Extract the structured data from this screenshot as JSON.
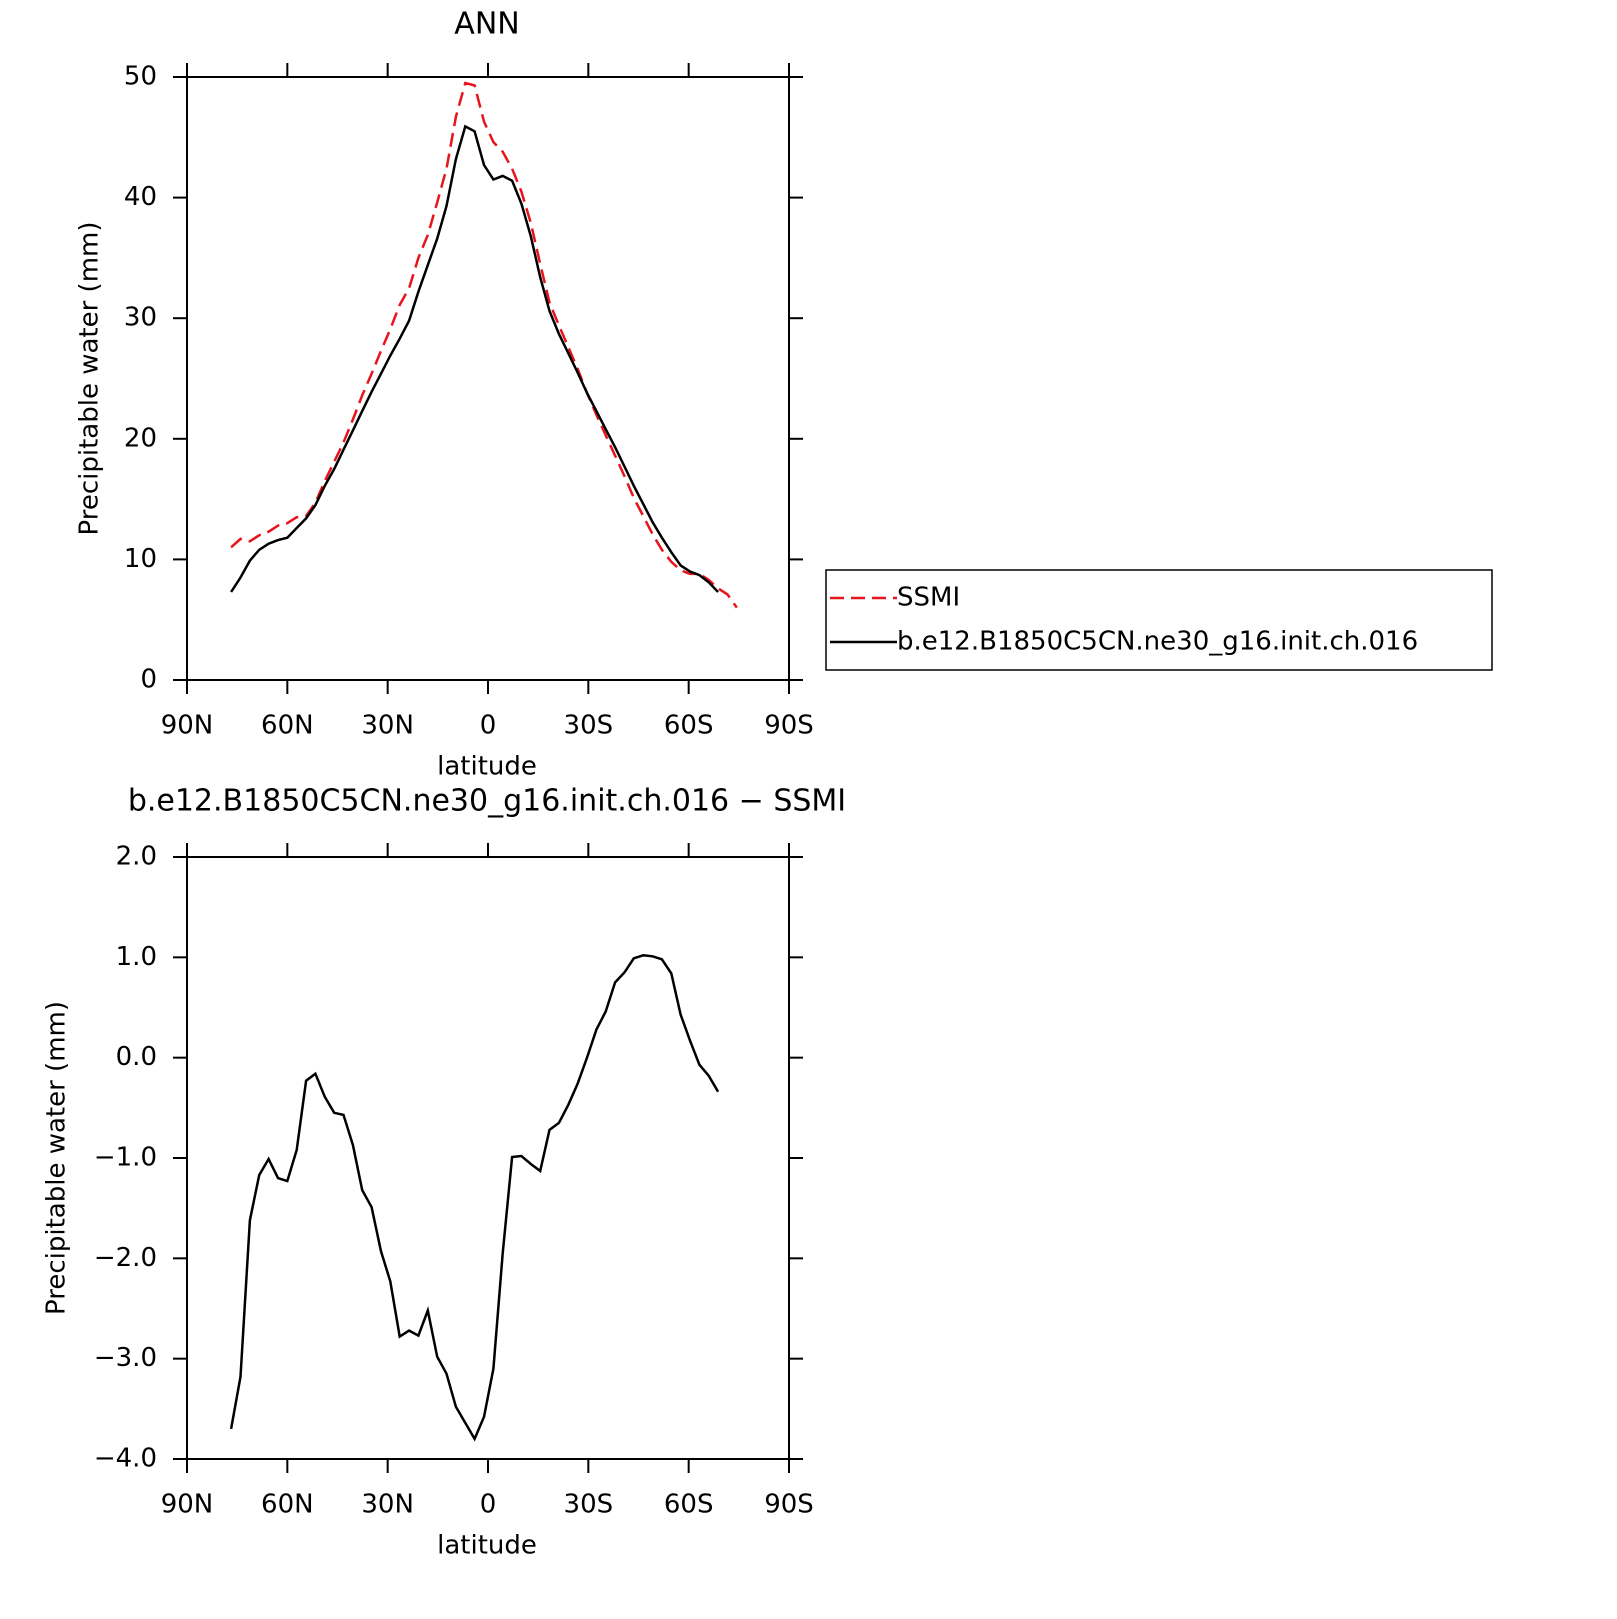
{
  "chart_data": [
    {
      "type": "line",
      "title": "ANN",
      "xlabel": "latitude",
      "ylabel": "Precipitable water (mm)",
      "x": [
        76.8,
        74,
        71.2,
        68.4,
        65.6,
        62.8,
        60,
        57.2,
        54.4,
        51.6,
        48.8,
        46,
        43.2,
        40.4,
        37.6,
        34.8,
        32,
        29.2,
        26.4,
        23.6,
        20.8,
        18,
        15.2,
        12.4,
        9.6,
        6.8,
        4,
        1.2,
        -1.6,
        -4.4,
        -7.2,
        -10,
        -12.8,
        -15.6,
        -18.4,
        -21.2,
        -24,
        -26.8,
        -29.6,
        -32.4,
        -35.2,
        -38,
        -40.8,
        -43.6,
        -46.4,
        -49.2,
        -52,
        -54.8,
        -57.6,
        -60.4,
        -63.2,
        -66,
        -68.8,
        -71.6,
        -74.4
      ],
      "series": [
        {
          "name": "SSMI",
          "color": "#e8141c",
          "linestyle": "dashed",
          "values": [
            11.0,
            11.7,
            11.5,
            12.0,
            12.3,
            12.8,
            13.0,
            13.5,
            13.6,
            14.7,
            16.5,
            18.1,
            19.7,
            21.6,
            23.6,
            25.4,
            27.3,
            29.1,
            31.1,
            32.5,
            35.0,
            36.9,
            39.6,
            42.4,
            46.7,
            49.5,
            49.3,
            46.3,
            44.6,
            43.8,
            42.4,
            40.5,
            37.9,
            34.5,
            31.3,
            29.4,
            27.6,
            25.8,
            23.8,
            22.0,
            20.3,
            18.6,
            16.9,
            15.1,
            13.6,
            12.1,
            10.8,
            9.8,
            9.1,
            8.8,
            8.8,
            8.3,
            7.6,
            7.1,
            6.0
          ]
        },
        {
          "name": "b.e12.B1850C5CN.ne30_g16.init.ch.016",
          "color": "#000000",
          "linestyle": "solid",
          "values": [
            7.3,
            8.5,
            9.9,
            10.8,
            11.3,
            11.6,
            11.8,
            12.6,
            13.4,
            14.5,
            16.1,
            17.5,
            19.1,
            20.7,
            22.3,
            23.9,
            25.4,
            26.9,
            28.3,
            29.8,
            32.2,
            34.4,
            36.6,
            39.3,
            43.2,
            45.9,
            45.5,
            42.7,
            41.5,
            41.8,
            41.4,
            39.5,
            36.8,
            33.4,
            30.6,
            28.7,
            27.1,
            25.5,
            23.8,
            22.3,
            20.8,
            19.3,
            17.7,
            16.1,
            14.6,
            13.1,
            11.8,
            10.6,
            9.5,
            9.0,
            8.7,
            8.1,
            7.3,
            null,
            null
          ]
        }
      ],
      "xlim": [
        90,
        -90
      ],
      "xticks": [
        {
          "value": 90,
          "label": "90N"
        },
        {
          "value": 60,
          "label": "60N"
        },
        {
          "value": 30,
          "label": "30N"
        },
        0,
        {
          "value": -30,
          "label": "30S"
        },
        {
          "value": -60,
          "label": "60S"
        },
        {
          "value": -90,
          "label": "90S"
        }
      ],
      "ylim": [
        0,
        50
      ],
      "yticks": [
        0,
        10,
        20,
        30,
        40,
        50
      ],
      "legend": "right"
    },
    {
      "type": "line",
      "title": "b.e12.B1850C5CN.ne30_g16.init.ch.016 − SSMI",
      "xlabel": "latitude",
      "ylabel": "Precipitable water (mm)",
      "x": [
        76.8,
        74,
        71.2,
        68.4,
        65.6,
        62.8,
        60,
        57.2,
        54.4,
        51.6,
        48.8,
        46,
        43.2,
        40.4,
        37.6,
        34.8,
        32,
        29.2,
        26.4,
        23.6,
        20.8,
        18,
        15.2,
        12.4,
        9.6,
        6.8,
        4,
        1.2,
        -1.6,
        -4.4,
        -7.2,
        -10,
        -12.8,
        -15.6,
        -18.4,
        -21.2,
        -24,
        -26.8,
        -29.6,
        -32.4,
        -35.2,
        -38,
        -40.8,
        -43.6,
        -46.4,
        -49.2,
        -52,
        -54.8,
        -57.6,
        -60.4,
        -63.2,
        -66,
        -68.8
      ],
      "series": [
        {
          "color": "#000000",
          "linestyle": "solid",
          "values": [
            -3.7,
            -3.18,
            -1.62,
            -1.17,
            -1.01,
            -1.2,
            -1.23,
            -0.92,
            -0.23,
            -0.16,
            -0.39,
            -0.55,
            -0.57,
            -0.87,
            -1.32,
            -1.49,
            -1.93,
            -2.23,
            -2.78,
            -2.72,
            -2.77,
            -2.52,
            -2.98,
            -3.15,
            -3.48,
            -3.64,
            -3.8,
            -3.58,
            -3.1,
            -1.95,
            -0.99,
            -0.98,
            -1.06,
            -1.13,
            -0.72,
            -0.65,
            -0.47,
            -0.26,
            0.0,
            0.28,
            0.46,
            0.75,
            0.85,
            0.99,
            1.02,
            1.01,
            0.98,
            0.84,
            0.43,
            0.17,
            -0.07,
            -0.18,
            -0.34
          ]
        }
      ],
      "xlim": [
        90,
        -90
      ],
      "xticks": [
        {
          "value": 90,
          "label": "90N"
        },
        {
          "value": 60,
          "label": "60N"
        },
        {
          "value": 30,
          "label": "30N"
        },
        0,
        {
          "value": -30,
          "label": "30S"
        },
        {
          "value": -60,
          "label": "60S"
        },
        {
          "value": -90,
          "label": "90S"
        }
      ],
      "ylim": [
        -4,
        2
      ],
      "yticks": [
        {
          "value": -4,
          "label": "−4.0"
        },
        {
          "value": -3,
          "label": "−3.0"
        },
        {
          "value": -2,
          "label": "−2.0"
        },
        {
          "value": -1,
          "label": "−1.0"
        },
        {
          "value": 0,
          "label": "0.0"
        },
        {
          "value": 1,
          "label": "1.0"
        },
        {
          "value": 2,
          "label": "2.0"
        }
      ]
    }
  ]
}
